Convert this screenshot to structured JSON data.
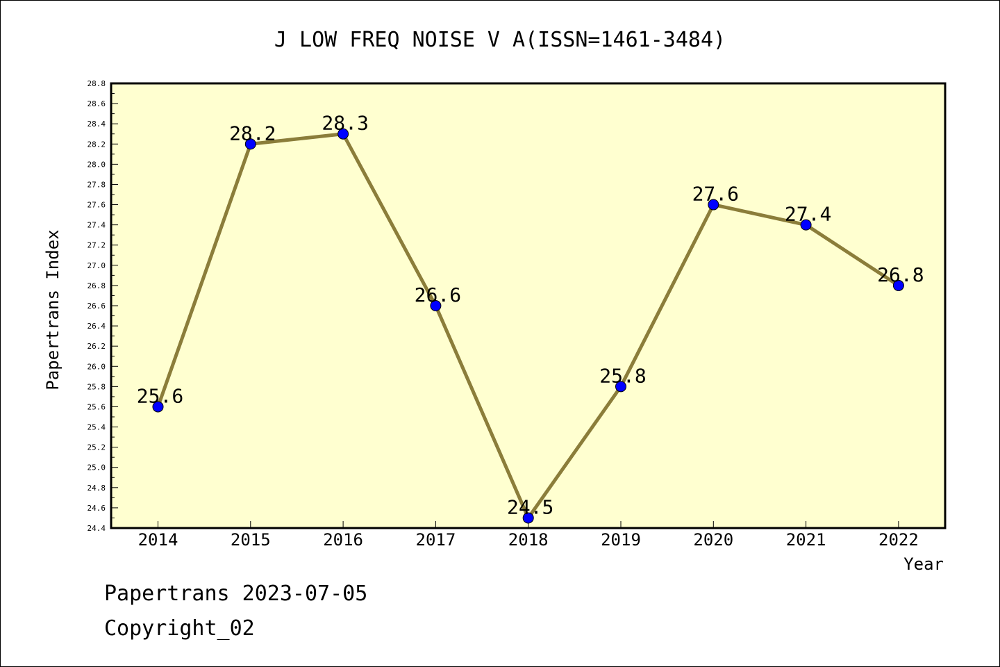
{
  "chart_data": {
    "type": "line",
    "title": "J LOW FREQ NOISE V A(ISSN=1461-3484)",
    "xlabel": "Year",
    "ylabel": "Papertrans Index",
    "categories": [
      "2014",
      "2015",
      "2016",
      "2017",
      "2018",
      "2019",
      "2020",
      "2021",
      "2022"
    ],
    "values": [
      25.6,
      28.2,
      28.3,
      26.6,
      24.5,
      25.8,
      27.6,
      27.4,
      26.8
    ],
    "data_labels": [
      "25.6",
      "28.2",
      "28.3",
      "26.6",
      "24.5",
      "25.8",
      "27.6",
      "27.4",
      "26.8"
    ],
    "ylim": [
      24.4,
      28.8
    ],
    "yticks": [
      "24.4",
      "24.6",
      "24.8",
      "25.0",
      "25.2",
      "25.4",
      "25.6",
      "25.8",
      "26.0",
      "26.2",
      "26.4",
      "26.6",
      "26.8",
      "27.0",
      "27.2",
      "27.4",
      "27.6",
      "27.8",
      "28.0",
      "28.2",
      "28.4",
      "28.6",
      "28.8"
    ],
    "grid": false,
    "legend": "none",
    "colors": {
      "plot_background": "#ffffd0",
      "line": "#8b7d3a",
      "marker": "#0000ff"
    }
  },
  "footer": {
    "date_line": "Papertrans 2023-07-05",
    "copyright_line": "Copyright_02"
  }
}
